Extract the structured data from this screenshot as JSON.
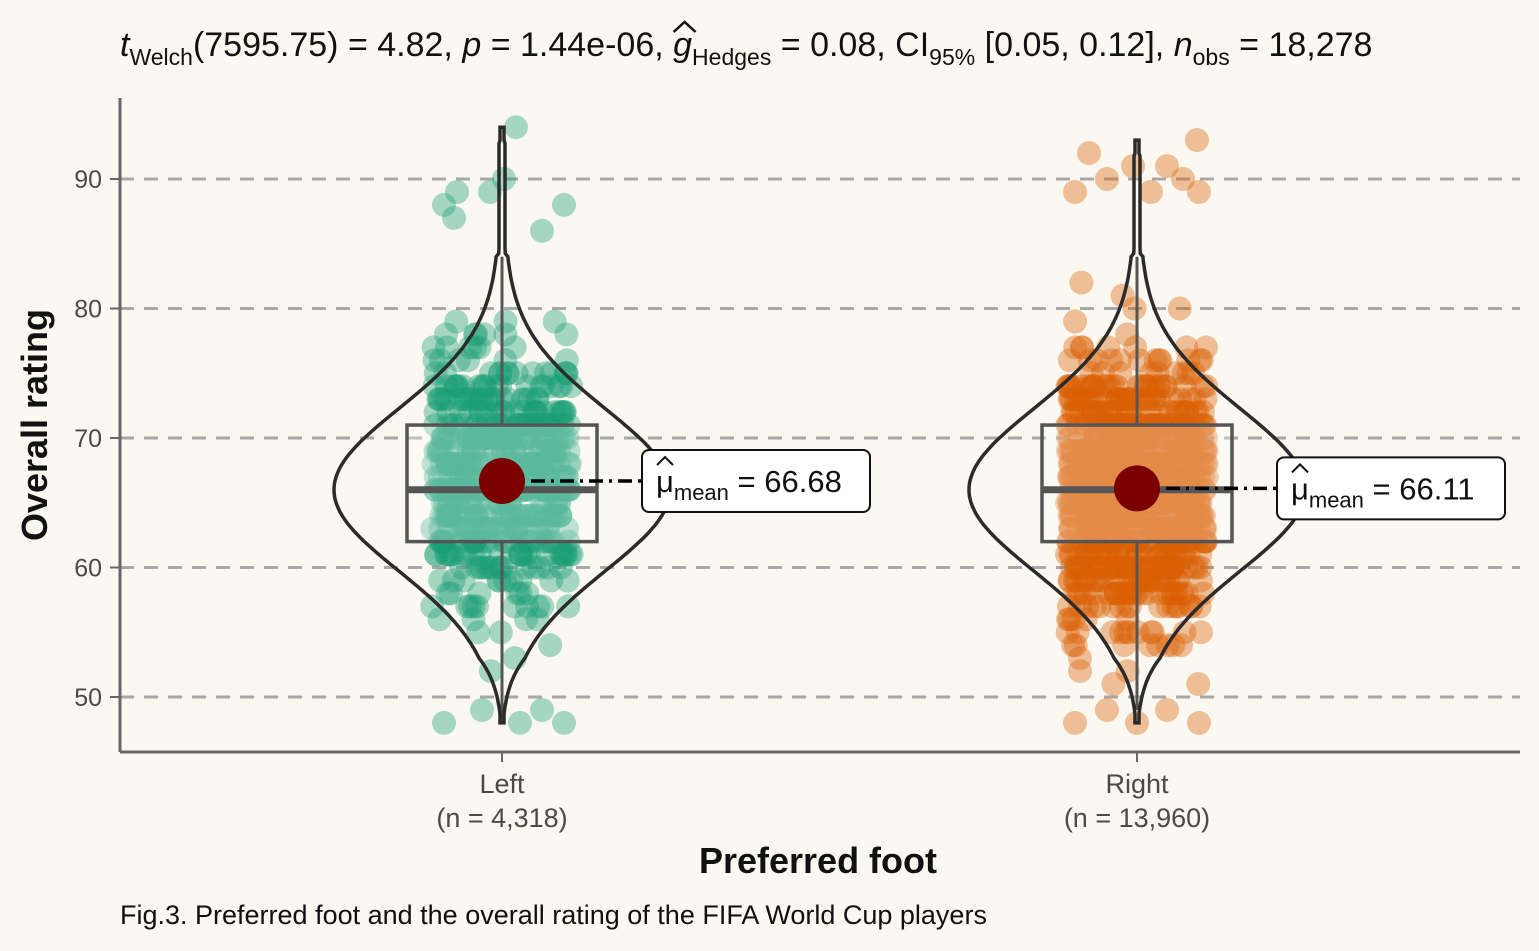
{
  "chart_data": {
    "type": "violin-box-scatter",
    "subtitle": {
      "t_symbol": "t",
      "t_sub": "Welch",
      "t_rest": "(7595.75) = 4.82, ",
      "p_symbol": "p",
      "p_rest": " = 1.44e-06, ",
      "g_symbol": "g",
      "g_sub": "Hedges",
      "g_rest": " = 0.08, CI",
      "ci_sub": "95%",
      "ci_rest": " [0.05, 0.12], ",
      "n_symbol": "n",
      "n_sub": "obs",
      "n_rest": " = 18,278"
    },
    "xlabel": "Preferred foot",
    "ylabel": "Overall rating",
    "caption": "Fig.3. Preferred foot and the overall rating of the FIFA World Cup players",
    "ylim": [
      45.8,
      97.5
    ],
    "yticks": [
      50,
      60,
      70,
      80,
      90
    ],
    "grid": "horizontal dashed",
    "groups": [
      {
        "name": "Left",
        "n_label": "(n = 4,318)",
        "color": "#1b9e77",
        "min": 48,
        "q1": 62,
        "median": 66,
        "q3": 71,
        "max": 94,
        "whisker_low": 48,
        "whisker_high": 84,
        "mean": 66.68,
        "mean_label_symbol": "μ",
        "mean_label_sub": "mean",
        "mean_label_rest": " = 66.68"
      },
      {
        "name": "Right",
        "n_label": "(n = 13,960)",
        "color": "#d95f02",
        "min": 48,
        "q1": 62,
        "median": 66,
        "q3": 71,
        "max": 93,
        "whisker_low": 49,
        "whisker_high": 84,
        "mean": 66.11,
        "mean_label_symbol": "μ",
        "mean_label_sub": "mean",
        "mean_label_rest": " = 66.11"
      }
    ],
    "mean_point_color": "#7a0000"
  }
}
